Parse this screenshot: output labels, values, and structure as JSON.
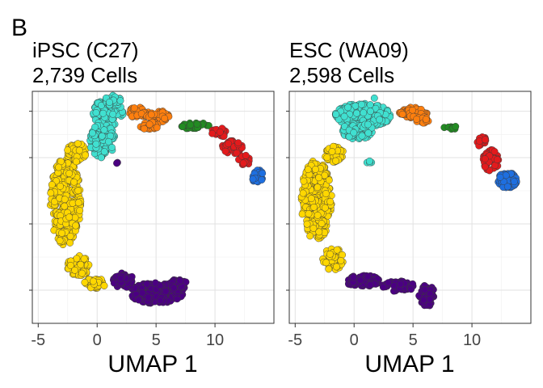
{
  "panel_label": "B",
  "chart_data": [
    {
      "type": "scatter",
      "title": "iPSC (C27)",
      "subtitle": "2,739 Cells",
      "xlabel": "UMAP 1",
      "ylabel": "",
      "xlim": [
        -5.5,
        15
      ],
      "ylim": [
        -8.5,
        9
      ],
      "xticks": [
        -5,
        0,
        5,
        10
      ],
      "xtick_labels": [
        "-5",
        "0",
        "5",
        "10"
      ],
      "yticks": [
        -6,
        -1,
        4,
        7.5
      ],
      "ytick_labels": [
        "",
        "",
        "",
        ""
      ],
      "grid": true,
      "series": [
        {
          "color": "#FFD700",
          "clusters": [
            {
              "cx": -2.7,
              "cy": 0.7,
              "rx": 1.3,
              "ry": 3.3,
              "n": 280
            },
            {
              "cx": -1.7,
              "cy": 4.4,
              "rx": 0.9,
              "ry": 0.7,
              "n": 50
            },
            {
              "cx": -1.6,
              "cy": -4.2,
              "rx": 0.9,
              "ry": 0.8,
              "n": 60
            },
            {
              "cx": -0.2,
              "cy": -5.5,
              "rx": 0.9,
              "ry": 0.4,
              "n": 35
            }
          ]
        },
        {
          "color": "#40E0D0",
          "clusters": [
            {
              "cx": 0.9,
              "cy": 7.4,
              "rx": 1.3,
              "ry": 1.0,
              "n": 140
            },
            {
              "cx": 0.4,
              "cy": 5.3,
              "rx": 1.1,
              "ry": 1.3,
              "n": 110
            },
            {
              "cx": 1.4,
              "cy": 8.3,
              "rx": 0.8,
              "ry": 0.4,
              "n": 40
            }
          ]
        },
        {
          "color": "#FF7F0E",
          "clusters": [
            {
              "cx": 3.5,
              "cy": 7.4,
              "rx": 0.9,
              "ry": 0.4,
              "n": 35
            },
            {
              "cx": 5.2,
              "cy": 7.1,
              "rx": 1.0,
              "ry": 0.5,
              "n": 40
            },
            {
              "cx": 4.4,
              "cy": 6.4,
              "rx": 0.8,
              "ry": 0.3,
              "n": 25
            }
          ]
        },
        {
          "color": "#228B22",
          "clusters": [
            {
              "cx": 8.3,
              "cy": 6.4,
              "rx": 1.2,
              "ry": 0.25,
              "n": 30
            }
          ]
        },
        {
          "color": "#E31A1C",
          "clusters": [
            {
              "cx": 10.3,
              "cy": 5.9,
              "rx": 0.7,
              "ry": 0.4,
              "n": 25
            },
            {
              "cx": 11.5,
              "cy": 4.8,
              "rx": 0.9,
              "ry": 0.5,
              "n": 40
            },
            {
              "cx": 12.5,
              "cy": 3.8,
              "rx": 0.6,
              "ry": 0.4,
              "n": 15
            }
          ]
        },
        {
          "color": "#1E6FE0",
          "clusters": [
            {
              "cx": 13.6,
              "cy": 2.6,
              "rx": 0.5,
              "ry": 0.5,
              "n": 30
            }
          ]
        },
        {
          "color": "#4B0082",
          "clusters": [
            {
              "cx": 5.0,
              "cy": -6.2,
              "rx": 2.3,
              "ry": 0.8,
              "n": 240
            },
            {
              "cx": 2.2,
              "cy": -5.3,
              "rx": 0.9,
              "ry": 0.6,
              "n": 50
            },
            {
              "cx": 6.9,
              "cy": -5.6,
              "rx": 0.7,
              "ry": 0.5,
              "n": 40
            },
            {
              "cx": 1.7,
              "cy": 3.6,
              "rx": 0.1,
              "ry": 0.1,
              "n": 2
            }
          ]
        }
      ]
    },
    {
      "type": "scatter",
      "title": "ESC (WA09)",
      "subtitle": "2,598 Cells",
      "xlabel": "UMAP 1",
      "ylabel": "",
      "xlim": [
        -5.5,
        15
      ],
      "ylim": [
        -8.5,
        9
      ],
      "xticks": [
        -5,
        0,
        5,
        10
      ],
      "xtick_labels": [
        "-5",
        "0",
        "5",
        "10"
      ],
      "yticks": [
        -6,
        -1,
        4,
        7.5
      ],
      "ytick_labels": [
        "",
        "",
        "",
        ""
      ],
      "grid": true,
      "series": [
        {
          "color": "#FFD700",
          "clusters": [
            {
              "cx": -3.2,
              "cy": 0.8,
              "rx": 1.3,
              "ry": 3.0,
              "n": 260
            },
            {
              "cx": -1.7,
              "cy": 4.3,
              "rx": 0.8,
              "ry": 0.7,
              "n": 45
            },
            {
              "cx": -1.8,
              "cy": -3.6,
              "rx": 0.9,
              "ry": 0.9,
              "n": 50
            }
          ]
        },
        {
          "color": "#40E0D0",
          "clusters": [
            {
              "cx": 0.8,
              "cy": 7.2,
              "rx": 2.4,
              "ry": 0.9,
              "n": 260
            },
            {
              "cx": 0.3,
              "cy": 6.0,
              "rx": 1.3,
              "ry": 0.7,
              "n": 90
            },
            {
              "cx": 1.8,
              "cy": 8.5,
              "rx": 0.1,
              "ry": 0.1,
              "n": 1
            },
            {
              "cx": 1.3,
              "cy": 3.7,
              "rx": 0.3,
              "ry": 0.1,
              "n": 4
            }
          ]
        },
        {
          "color": "#FF7F0E",
          "clusters": [
            {
              "cx": 5.0,
              "cy": 7.4,
              "rx": 1.2,
              "ry": 0.4,
              "n": 60
            },
            {
              "cx": 5.8,
              "cy": 6.8,
              "rx": 0.6,
              "ry": 0.3,
              "n": 15
            }
          ]
        },
        {
          "color": "#228B22",
          "clusters": [
            {
              "cx": 8.5,
              "cy": 6.3,
              "rx": 0.9,
              "ry": 0.2,
              "n": 8
            }
          ]
        },
        {
          "color": "#E31A1C",
          "clusters": [
            {
              "cx": 10.8,
              "cy": 5.3,
              "rx": 0.4,
              "ry": 0.5,
              "n": 15
            },
            {
              "cx": 11.6,
              "cy": 3.8,
              "rx": 0.7,
              "ry": 0.8,
              "n": 60
            }
          ]
        },
        {
          "color": "#1E6FE0",
          "clusters": [
            {
              "cx": 13.0,
              "cy": 2.3,
              "rx": 0.8,
              "ry": 0.6,
              "n": 120
            }
          ]
        },
        {
          "color": "#4B0082",
          "clusters": [
            {
              "cx": 0.8,
              "cy": -5.3,
              "rx": 1.5,
              "ry": 0.45,
              "n": 80
            },
            {
              "cx": 3.8,
              "cy": -5.7,
              "rx": 1.4,
              "ry": 0.4,
              "n": 50
            },
            {
              "cx": 6.2,
              "cy": -6.4,
              "rx": 0.7,
              "ry": 0.8,
              "n": 70
            }
          ]
        }
      ]
    }
  ]
}
